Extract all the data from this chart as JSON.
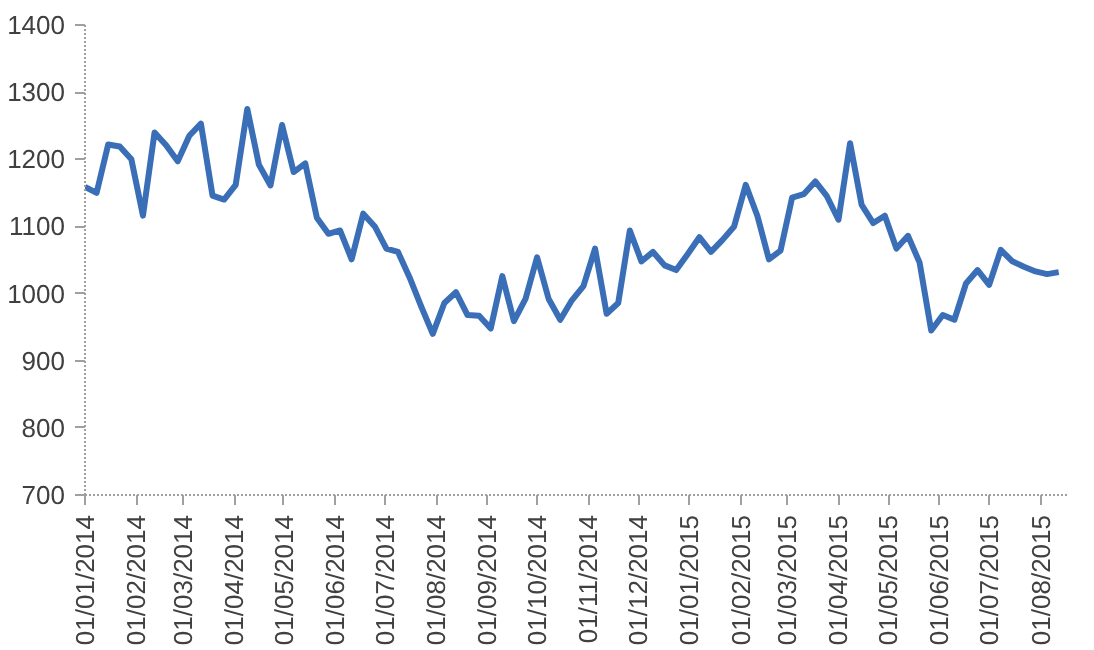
{
  "chart_data": {
    "type": "line",
    "x": [
      "2014-01-01",
      "2014-01-08",
      "2014-01-15",
      "2014-01-22",
      "2014-01-29",
      "2014-02-05",
      "2014-02-12",
      "2014-02-19",
      "2014-02-26",
      "2014-03-05",
      "2014-03-12",
      "2014-03-19",
      "2014-03-26",
      "2014-04-02",
      "2014-04-09",
      "2014-04-16",
      "2014-04-23",
      "2014-04-30",
      "2014-05-07",
      "2014-05-14",
      "2014-05-21",
      "2014-05-28",
      "2014-06-04",
      "2014-06-11",
      "2014-06-18",
      "2014-06-25",
      "2014-07-02",
      "2014-07-09",
      "2014-07-16",
      "2014-07-23",
      "2014-07-30",
      "2014-08-06",
      "2014-08-13",
      "2014-08-20",
      "2014-08-27",
      "2014-09-03",
      "2014-09-10",
      "2014-09-17",
      "2014-09-24",
      "2014-10-01",
      "2014-10-08",
      "2014-10-15",
      "2014-10-22",
      "2014-10-29",
      "2014-11-05",
      "2014-11-12",
      "2014-11-19",
      "2014-11-26",
      "2014-12-03",
      "2014-12-10",
      "2014-12-17",
      "2014-12-24",
      "2014-12-31",
      "2015-01-07",
      "2015-01-14",
      "2015-01-21",
      "2015-01-28",
      "2015-02-04",
      "2015-02-11",
      "2015-02-18",
      "2015-02-25",
      "2015-03-04",
      "2015-03-11",
      "2015-03-18",
      "2015-03-25",
      "2015-04-01",
      "2015-04-08",
      "2015-04-15",
      "2015-04-22",
      "2015-04-29",
      "2015-05-06",
      "2015-05-13",
      "2015-05-20",
      "2015-05-27",
      "2015-06-03",
      "2015-06-10",
      "2015-06-17",
      "2015-06-24",
      "2015-07-01",
      "2015-07-08",
      "2015-07-15",
      "2015-07-22",
      "2015-07-29",
      "2015-08-05",
      "2015-08-12"
    ],
    "series": [
      {
        "color": "#3a6fb7",
        "values": [
          1159,
          1150,
          1222,
          1219,
          1200,
          1116,
          1240,
          1221,
          1197,
          1235,
          1253,
          1146,
          1140,
          1162,
          1275,
          1192,
          1161,
          1251,
          1181,
          1194,
          1113,
          1089,
          1094,
          1051,
          1119,
          1100,
          1067,
          1062,
          1024,
          981,
          940,
          986,
          1002,
          968,
          967,
          948,
          1026,
          959,
          992,
          1054,
          992,
          961,
          990,
          1011,
          1067,
          970,
          986,
          1094,
          1048,
          1062,
          1042,
          1035,
          1059,
          1084,
          1062,
          1080,
          1100,
          1162,
          1116,
          1051,
          1064,
          1143,
          1148,
          1167,
          1145,
          1110,
          1224,
          1132,
          1105,
          1116,
          1067,
          1086,
          1046,
          945,
          968,
          961,
          1015,
          1035,
          1013,
          1065,
          1048,
          1040,
          1033,
          1029,
          1032
        ]
      }
    ],
    "xlim": [
      "2014-01-01",
      "2015-08-17"
    ],
    "xticks": [
      {
        "value": "2014-01-01",
        "label": "01/01/2014"
      },
      {
        "value": "2014-02-01",
        "label": "01/02/2014"
      },
      {
        "value": "2014-03-01",
        "label": "01/03/2014"
      },
      {
        "value": "2014-04-01",
        "label": "01/04/2014"
      },
      {
        "value": "2014-05-01",
        "label": "01/05/2014"
      },
      {
        "value": "2014-06-01",
        "label": "01/06/2014"
      },
      {
        "value": "2014-07-01",
        "label": "01/07/2014"
      },
      {
        "value": "2014-08-01",
        "label": "01/08/2014"
      },
      {
        "value": "2014-09-01",
        "label": "01/09/2014"
      },
      {
        "value": "2014-10-01",
        "label": "01/10/2014"
      },
      {
        "value": "2014-11-01",
        "label": "01/11/2014"
      },
      {
        "value": "2014-12-01",
        "label": "01/12/2014"
      },
      {
        "value": "2015-01-01",
        "label": "01/01/2015"
      },
      {
        "value": "2015-02-01",
        "label": "01/02/2015"
      },
      {
        "value": "2015-03-01",
        "label": "01/03/2015"
      },
      {
        "value": "2015-04-01",
        "label": "01/04/2015"
      },
      {
        "value": "2015-05-01",
        "label": "01/05/2015"
      },
      {
        "value": "2015-06-01",
        "label": "01/06/2015"
      },
      {
        "value": "2015-07-01",
        "label": "01/07/2015"
      },
      {
        "value": "2015-08-01",
        "label": "01/08/2015"
      }
    ],
    "ylim": [
      700,
      1400
    ],
    "yticks": [
      700,
      800,
      900,
      1000,
      1100,
      1200,
      1300,
      1400
    ],
    "grid": false,
    "line_style": "solid"
  }
}
